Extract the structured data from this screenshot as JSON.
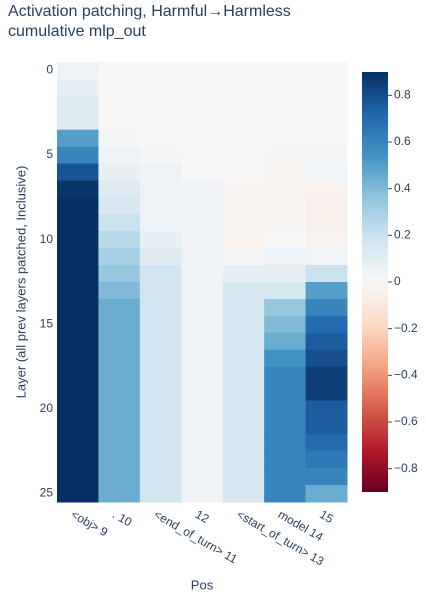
{
  "chart_data": {
    "type": "heatmap",
    "title": [
      "Activation patching, Harmful→Harmless",
      "cumulative mlp_out"
    ],
    "x_label": "Pos",
    "y_label": "Layer (all prev layers patched, Inclusive)",
    "x": [
      "<obj> 9",
      ". 10",
      "<end_of_turn> 11",
      "12",
      "<start_of_turn> 13",
      "model 14",
      "15"
    ],
    "ylim": [
      -0.5,
      25.5
    ],
    "yticks": [
      0,
      5,
      10,
      15,
      20,
      25
    ],
    "z": [
      [
        0.05,
        0,
        0,
        0,
        0,
        0,
        0
      ],
      [
        0.08,
        0,
        0,
        0,
        0,
        0,
        0
      ],
      [
        0.12,
        0,
        0,
        0,
        0,
        0,
        0
      ],
      [
        0.12,
        0,
        0,
        0,
        0,
        0,
        0
      ],
      [
        0.5,
        0.02,
        0,
        0,
        0,
        0,
        0
      ],
      [
        0.6,
        0.05,
        0.02,
        0,
        0,
        -0.01,
        0.02
      ],
      [
        0.78,
        0.07,
        0.05,
        0,
        0,
        -0.02,
        0.03
      ],
      [
        0.88,
        0.12,
        0.05,
        0.04,
        -0.02,
        -0.02,
        -0.03
      ],
      [
        0.9,
        0.15,
        0.05,
        0.04,
        -0.02,
        -0.02,
        -0.05
      ],
      [
        0.9,
        0.2,
        0.05,
        0.04,
        -0.02,
        -0.02,
        -0.05
      ],
      [
        0.9,
        0.25,
        0.08,
        0.04,
        -0.04,
        0,
        -0.03
      ],
      [
        0.9,
        0.3,
        0.12,
        0.04,
        0.02,
        0.05,
        0.03
      ],
      [
        0.9,
        0.35,
        0.18,
        0.04,
        0.08,
        0.08,
        0.2
      ],
      [
        0.9,
        0.4,
        0.18,
        0.04,
        0.15,
        0.15,
        0.5
      ],
      [
        0.9,
        0.45,
        0.18,
        0.04,
        0.15,
        0.35,
        0.6
      ],
      [
        0.9,
        0.45,
        0.18,
        0.04,
        0.15,
        0.4,
        0.7
      ],
      [
        0.9,
        0.45,
        0.18,
        0.04,
        0.15,
        0.45,
        0.75
      ],
      [
        0.9,
        0.45,
        0.18,
        0.04,
        0.15,
        0.55,
        0.8
      ],
      [
        0.9,
        0.45,
        0.18,
        0.04,
        0.15,
        0.6,
        0.85
      ],
      [
        0.9,
        0.45,
        0.18,
        0.04,
        0.15,
        0.6,
        0.85
      ],
      [
        0.9,
        0.45,
        0.18,
        0.04,
        0.15,
        0.6,
        0.75
      ],
      [
        0.9,
        0.45,
        0.18,
        0.04,
        0.15,
        0.6,
        0.75
      ],
      [
        0.9,
        0.45,
        0.18,
        0.04,
        0.15,
        0.6,
        0.7
      ],
      [
        0.9,
        0.45,
        0.18,
        0.04,
        0.15,
        0.6,
        0.65
      ],
      [
        0.9,
        0.45,
        0.18,
        0.04,
        0.15,
        0.6,
        0.6
      ],
      [
        0.9,
        0.45,
        0.18,
        0.04,
        0.15,
        0.6,
        0.45
      ]
    ],
    "zlim": [
      -0.9,
      0.9
    ],
    "colorscale": [
      "#67001f",
      "#b2182b",
      "#d6604d",
      "#f4a582",
      "#fddbc7",
      "#f7f7f7",
      "#d1e5f0",
      "#92c5de",
      "#4393c3",
      "#2166ac",
      "#053061"
    ],
    "colorbar_ticks": [
      0.8,
      0.6,
      0.4,
      0.2,
      0,
      {
        "value": -0.2,
        "label": "−0.2"
      },
      {
        "value": -0.4,
        "label": "−0.4"
      },
      {
        "value": -0.6,
        "label": "−0.6"
      },
      {
        "value": -0.8,
        "label": "−0.8"
      }
    ]
  }
}
